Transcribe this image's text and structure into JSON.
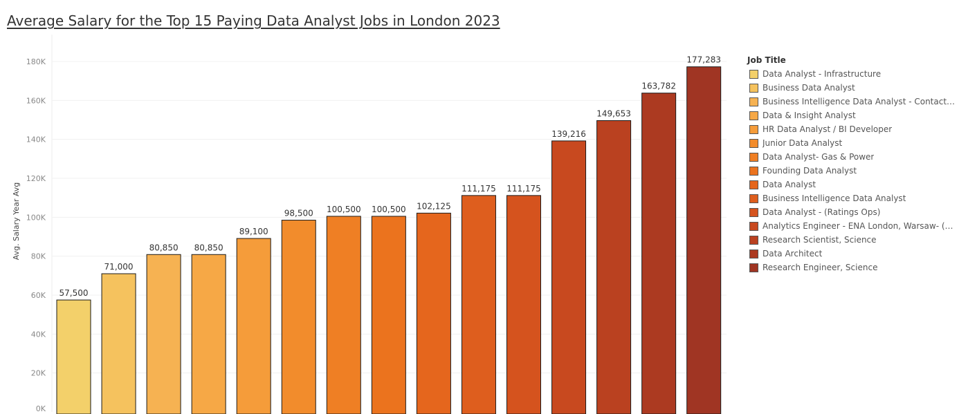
{
  "chart_data": {
    "type": "bar",
    "title": "Average Salary for the Top 15 Paying Data Analyst Jobs in London 2023",
    "xlabel": "",
    "ylabel": "Avg. Salary Year Avg",
    "ylim": [
      0,
      190000
    ],
    "yticks": [
      {
        "value": 0,
        "label": "0K"
      },
      {
        "value": 20000,
        "label": "20K"
      },
      {
        "value": 40000,
        "label": "40K"
      },
      {
        "value": 60000,
        "label": "60K"
      },
      {
        "value": 80000,
        "label": "80K"
      },
      {
        "value": 100000,
        "label": "100K"
      },
      {
        "value": 120000,
        "label": "120K"
      },
      {
        "value": 140000,
        "label": "140K"
      },
      {
        "value": 160000,
        "label": "160K"
      },
      {
        "value": 180000,
        "label": "180K"
      }
    ],
    "grid": true,
    "legend_title": "Job Title",
    "legend_placement": "right",
    "categories": [
      "Data Analyst - Infrastructure",
      "Business Data Analyst",
      "Business Intelligence Data Analyst - Contact Cen..",
      "Data & Insight Analyst",
      "HR Data Analyst / BI Developer",
      "Junior Data Analyst",
      "Data Analyst- Gas & Power",
      "Founding Data Analyst",
      "Data Analyst",
      "Business Intelligence Data Analyst",
      "Data Analyst - (Ratings Ops)",
      "Analytics Engineer - ENA London, Warsaw- (F/M)",
      "Research Scientist, Science",
      "Data Architect",
      "Research Engineer, Science"
    ],
    "values": [
      57500,
      71000,
      80850,
      80850,
      89100,
      98500,
      100500,
      100500,
      102125,
      111175,
      111175,
      139216,
      149653,
      163782,
      177283
    ],
    "value_labels": [
      "57,500",
      "71,000",
      "80,850",
      "80,850",
      "89,100",
      "98,500",
      "100,500",
      "100,500",
      "102,125",
      "111,175",
      "111,175",
      "139,216",
      "149,653",
      "163,782",
      "177,283"
    ],
    "colors": [
      "#f3d06a",
      "#f5c25e",
      "#f6b252",
      "#f6a846",
      "#f59c3a",
      "#f28c2c",
      "#ef7f24",
      "#eb731e",
      "#e5661d",
      "#de5e1e",
      "#d5531e",
      "#c8491f",
      "#ba4120",
      "#ac3a21",
      "#a03523"
    ]
  }
}
